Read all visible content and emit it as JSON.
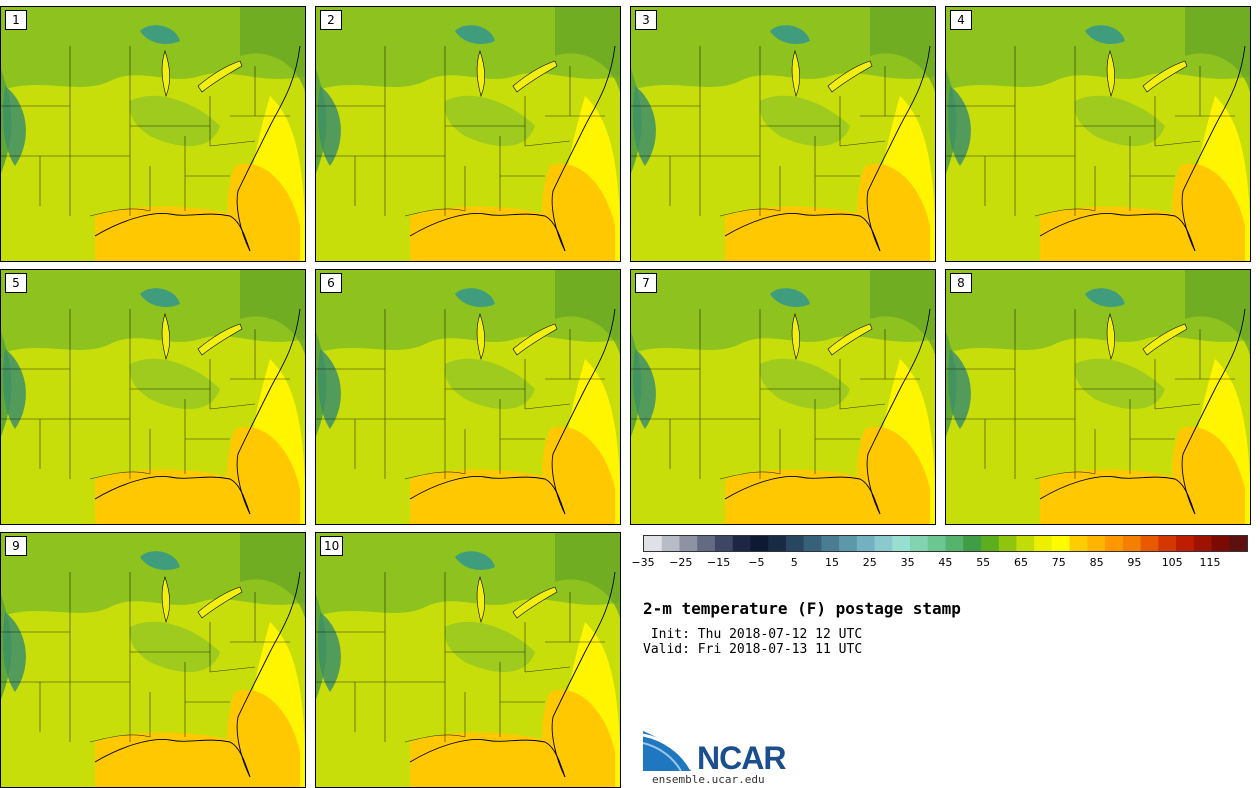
{
  "title": "2-m temperature (F) postage stamp",
  "init": " Init: Thu 2018-07-12 12 UTC",
  "valid": "Valid: Fri 2018-07-13 11 UTC",
  "panels": [
    "1",
    "2",
    "3",
    "4",
    "5",
    "6",
    "7",
    "8",
    "9",
    "10"
  ],
  "colorbar": {
    "colors": [
      "#dfe1e4",
      "#b8bcc7",
      "#8e93a4",
      "#636a83",
      "#3d4664",
      "#1d2745",
      "#0e1a33",
      "#182b44",
      "#284660",
      "#37607b",
      "#4a7d93",
      "#5d97aa",
      "#73b0c0",
      "#8bc9cf",
      "#98dfd2",
      "#82d4b0",
      "#6cc690",
      "#55b36e",
      "#3f9d45",
      "#5cae1f",
      "#8fc50e",
      "#c2dc05",
      "#ecf000",
      "#fffb00",
      "#ffcc00",
      "#ffb400",
      "#ff9800",
      "#f57f00",
      "#e95a00",
      "#d63600",
      "#bf1d00",
      "#9d1200",
      "#7b0b00",
      "#5c1010"
    ],
    "ticks": [
      "-35",
      "-25",
      "-15",
      "-5",
      "5",
      "15",
      "25",
      "35",
      "45",
      "55",
      "65",
      "75",
      "85",
      "95",
      "105",
      "115"
    ]
  },
  "logo": {
    "text": "NCAR",
    "site": "ensemble.ucar.edu",
    "color": "#1b4e8c"
  }
}
